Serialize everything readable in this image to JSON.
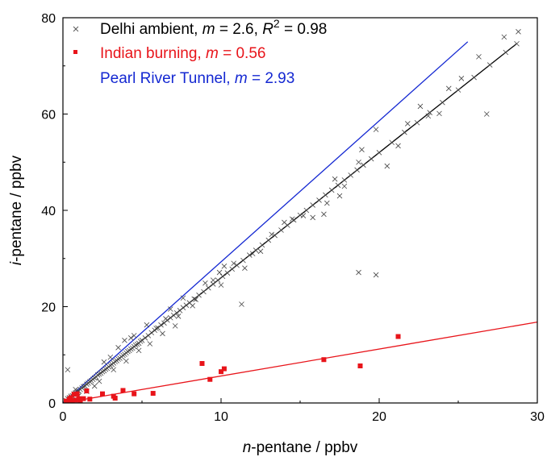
{
  "chart_data": {
    "type": "scatter",
    "xlabel": {
      "italic": "n",
      "rest": "-pentane / ppbv"
    },
    "ylabel": {
      "italic": "i",
      "rest": "-pentane / ppbv"
    },
    "xlim": [
      0,
      30
    ],
    "ylim": [
      0,
      80
    ],
    "xticks": [
      0,
      10,
      20,
      30
    ],
    "yticks": [
      0,
      20,
      40,
      60,
      80
    ],
    "grid": false,
    "legend_position": "top-left",
    "legend": [
      {
        "name": "Delhi ambient, ",
        "m_label": "m",
        "m_value": " = 2.6, ",
        "r_label": "R",
        "r_sup": "2",
        "r_value": " = 0.98",
        "color": "#000000",
        "marker": "x"
      },
      {
        "name": "Indian burning, ",
        "m_label": "m",
        "m_value": " = 0.56",
        "color": "#e8141a",
        "marker": "square"
      },
      {
        "name": "Pearl River Tunnel, ",
        "m_label": "m",
        "m_value": " = 2.93",
        "color": "#1428d2",
        "marker": "none"
      }
    ],
    "lines": [
      {
        "name": "Delhi ambient fit",
        "slope": 2.6,
        "intercept": 0,
        "x": [
          0,
          28.7
        ],
        "color": "#000000"
      },
      {
        "name": "Indian burning fit",
        "slope": 0.56,
        "intercept": 0,
        "x": [
          0,
          30
        ],
        "color": "#e8141a"
      },
      {
        "name": "Pearl River Tunnel",
        "slope": 2.93,
        "intercept": 0,
        "x": [
          0,
          25.6
        ],
        "color": "#1428d2"
      }
    ],
    "series": [
      {
        "name": "Delhi ambient",
        "marker": "x",
        "color": "#000000",
        "points": [
          [
            0.2,
            0.5
          ],
          [
            0.3,
            0.9
          ],
          [
            0.4,
            1.1
          ],
          [
            0.5,
            1.4
          ],
          [
            0.6,
            1.5
          ],
          [
            0.7,
            1.9
          ],
          [
            0.8,
            2.1
          ],
          [
            0.9,
            2.3
          ],
          [
            1.0,
            2.5
          ],
          [
            1.1,
            2.8
          ],
          [
            1.2,
            3.1
          ],
          [
            1.3,
            3.4
          ],
          [
            1.4,
            3.5
          ],
          [
            1.5,
            3.9
          ],
          [
            1.6,
            4.1
          ],
          [
            1.7,
            4.4
          ],
          [
            1.8,
            4.6
          ],
          [
            1.9,
            4.9
          ],
          [
            2.0,
            5.2
          ],
          [
            2.1,
            5.4
          ],
          [
            2.2,
            5.8
          ],
          [
            2.3,
            6.0
          ],
          [
            2.4,
            6.2
          ],
          [
            2.5,
            6.5
          ],
          [
            2.6,
            6.7
          ],
          [
            2.7,
            7.0
          ],
          [
            2.8,
            7.2
          ],
          [
            2.9,
            7.5
          ],
          [
            3.0,
            7.8
          ],
          [
            3.1,
            8.0
          ],
          [
            3.2,
            8.3
          ],
          [
            3.3,
            8.6
          ],
          [
            3.4,
            8.8
          ],
          [
            3.5,
            9.1
          ],
          [
            3.6,
            9.3
          ],
          [
            3.7,
            9.6
          ],
          [
            3.8,
            9.9
          ],
          [
            3.9,
            10.1
          ],
          [
            4.0,
            10.4
          ],
          [
            4.1,
            10.7
          ],
          [
            4.2,
            10.9
          ],
          [
            4.3,
            11.2
          ],
          [
            4.4,
            11.4
          ],
          [
            4.5,
            11.7
          ],
          [
            4.6,
            12.0
          ],
          [
            4.7,
            12.2
          ],
          [
            4.8,
            12.4
          ],
          [
            4.9,
            12.8
          ],
          [
            5.0,
            13.0
          ],
          [
            5.2,
            13.5
          ],
          [
            5.4,
            14.0
          ],
          [
            5.6,
            14.6
          ],
          [
            5.8,
            15.1
          ],
          [
            6.0,
            15.6
          ],
          [
            6.2,
            16.2
          ],
          [
            6.4,
            16.6
          ],
          [
            6.6,
            17.2
          ],
          [
            6.8,
            17.7
          ],
          [
            7.0,
            18.2
          ],
          [
            7.2,
            18.7
          ],
          [
            7.4,
            19.2
          ],
          [
            7.6,
            19.8
          ],
          [
            7.8,
            20.3
          ],
          [
            8.0,
            20.8
          ],
          [
            8.3,
            21.6
          ],
          [
            8.6,
            22.4
          ],
          [
            8.9,
            23.1
          ],
          [
            9.2,
            23.9
          ],
          [
            9.5,
            24.7
          ],
          [
            9.8,
            25.5
          ],
          [
            10.1,
            26.3
          ],
          [
            10.4,
            27.0
          ],
          [
            10.7,
            27.8
          ],
          [
            11.0,
            28.6
          ],
          [
            11.4,
            29.6
          ],
          [
            11.8,
            30.7
          ],
          [
            12.2,
            31.7
          ],
          [
            12.6,
            32.8
          ],
          [
            13.0,
            33.8
          ],
          [
            13.4,
            34.8
          ],
          [
            13.8,
            35.9
          ],
          [
            14.2,
            36.9
          ],
          [
            14.6,
            38.0
          ],
          [
            15.0,
            39.0
          ],
          [
            15.4,
            40.0
          ],
          [
            15.8,
            41.1
          ],
          [
            16.2,
            42.1
          ],
          [
            16.6,
            43.2
          ],
          [
            17.0,
            44.2
          ],
          [
            17.4,
            45.2
          ],
          [
            17.8,
            46.3
          ],
          [
            18.2,
            47.3
          ],
          [
            18.6,
            48.4
          ],
          [
            19.0,
            49.4
          ],
          [
            19.5,
            50.7
          ],
          [
            20.0,
            52.0
          ],
          [
            20.8,
            54.1
          ],
          [
            21.6,
            56.2
          ],
          [
            22.4,
            58.2
          ],
          [
            23.2,
            60.3
          ],
          [
            24.0,
            62.4
          ],
          [
            25.0,
            65.0
          ],
          [
            26.0,
            67.6
          ],
          [
            27.0,
            70.2
          ],
          [
            28.0,
            72.8
          ],
          [
            28.7,
            74.6
          ],
          [
            1.5,
            2.4
          ],
          [
            2.3,
            4.5
          ],
          [
            3.2,
            6.9
          ],
          [
            4.0,
            8.7
          ],
          [
            4.8,
            10.9
          ],
          [
            5.5,
            12.3
          ],
          [
            6.3,
            14.4
          ],
          [
            7.1,
            16.0
          ],
          [
            3.5,
            11.5
          ],
          [
            4.5,
            14.0
          ],
          [
            5.3,
            16.2
          ],
          [
            6.8,
            19.5
          ],
          [
            7.6,
            21.8
          ],
          [
            8.2,
            20.2
          ],
          [
            9.0,
            24.9
          ],
          [
            9.9,
            27.1
          ],
          [
            10.2,
            28.4
          ],
          [
            11.5,
            28.0
          ],
          [
            12.0,
            31.0
          ],
          [
            14.0,
            37.5
          ],
          [
            14.5,
            38.2
          ],
          [
            15.2,
            38.9
          ],
          [
            16.5,
            39.2
          ],
          [
            16.7,
            41.5
          ],
          [
            17.2,
            46.5
          ],
          [
            17.8,
            45.0
          ],
          [
            18.7,
            50.0
          ],
          [
            18.9,
            52.6
          ],
          [
            19.8,
            56.8
          ],
          [
            20.5,
            49.2
          ],
          [
            21.2,
            53.4
          ],
          [
            21.8,
            58.0
          ],
          [
            22.6,
            61.6
          ],
          [
            23.1,
            59.6
          ],
          [
            23.8,
            60.1
          ],
          [
            24.4,
            65.3
          ],
          [
            25.2,
            67.4
          ],
          [
            26.3,
            71.9
          ],
          [
            26.8,
            60.0
          ],
          [
            27.9,
            76.0
          ],
          [
            28.8,
            77.1
          ],
          [
            11.3,
            20.5
          ],
          [
            18.7,
            27.1
          ],
          [
            19.8,
            26.6
          ],
          [
            0.3,
            6.9
          ],
          [
            1.0,
            1.5
          ],
          [
            0.8,
            2.8
          ],
          [
            2.0,
            3.5
          ],
          [
            2.6,
            8.5
          ],
          [
            3.0,
            9.5
          ],
          [
            3.9,
            13.0
          ],
          [
            4.3,
            13.5
          ],
          [
            5.9,
            15.5
          ],
          [
            6.5,
            17.5
          ],
          [
            7.3,
            18.0
          ],
          [
            8.4,
            21.5
          ],
          [
            9.5,
            25.5
          ],
          [
            10.0,
            24.5
          ],
          [
            10.8,
            29.0
          ],
          [
            12.5,
            31.5
          ],
          [
            13.2,
            35.0
          ],
          [
            15.8,
            38.5
          ],
          [
            17.5,
            43.0
          ]
        ]
      },
      {
        "name": "Indian burning",
        "marker": "square",
        "color": "#e8141a",
        "points": [
          [
            0.2,
            0.4
          ],
          [
            0.3,
            0.2
          ],
          [
            0.4,
            0.8
          ],
          [
            0.5,
            1.1
          ],
          [
            0.6,
            0.3
          ],
          [
            0.7,
            1.8
          ],
          [
            0.8,
            0.6
          ],
          [
            0.9,
            1.9
          ],
          [
            1.0,
            0.9
          ],
          [
            1.1,
            0.5
          ],
          [
            1.3,
            0.9
          ],
          [
            1.5,
            2.5
          ],
          [
            1.7,
            0.8
          ],
          [
            2.5,
            1.9
          ],
          [
            3.2,
            1.4
          ],
          [
            3.3,
            1.0
          ],
          [
            3.8,
            2.6
          ],
          [
            4.5,
            1.9
          ],
          [
            5.7,
            2.0
          ],
          [
            8.8,
            8.2
          ],
          [
            9.3,
            4.9
          ],
          [
            10.0,
            6.5
          ],
          [
            10.2,
            7.1
          ],
          [
            16.5,
            9.0
          ],
          [
            18.8,
            7.7
          ],
          [
            21.2,
            13.8
          ]
        ]
      }
    ]
  }
}
